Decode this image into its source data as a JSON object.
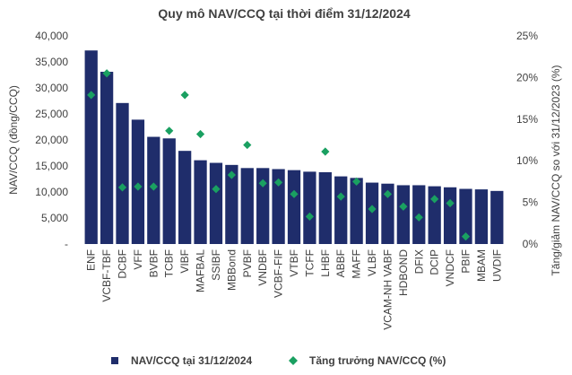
{
  "chart_data": {
    "type": "bar",
    "title": "Quy mô NAV/CCQ tại thời điểm 31/12/2024",
    "ylabel": "NAV/CCQ (đồng/CCQ)",
    "y2label": "Tăng/giảm NAV/CCQ so với 31/12/2023 (%)",
    "ylim": [
      0,
      40000
    ],
    "y2lim": [
      0,
      25
    ],
    "yticks": [
      "-",
      "5,000",
      "10,000",
      "15,000",
      "20,000",
      "25,000",
      "30,000",
      "35,000",
      "40,000"
    ],
    "y2ticks": [
      "0%",
      "5%",
      "10%",
      "15%",
      "20%",
      "25%"
    ],
    "categories": [
      "ENF",
      "VCBF-TBF",
      "DCBF",
      "VFF",
      "BVBF",
      "TCBF",
      "VIBF",
      "MAFBAL",
      "SSIBF",
      "MBBond",
      "PVBF",
      "VNDBF",
      "VCBF-FIF",
      "VTBF",
      "TCFF",
      "LHBF",
      "ABBF",
      "MAFF",
      "VLBF",
      "VCAM-NH VABF",
      "HDBOND",
      "DFIX",
      "DCIP",
      "VNDCF",
      "PBIF",
      "MBAM",
      "UVDIF"
    ],
    "series": [
      {
        "name": "NAV/CCQ tại 31/12/2024",
        "type": "bar",
        "color": "#1f2d6b",
        "axis": "left",
        "values": [
          37200,
          33100,
          27100,
          23900,
          20600,
          20300,
          17900,
          16100,
          15600,
          15200,
          14600,
          14600,
          14400,
          14200,
          13900,
          13800,
          13000,
          12700,
          11800,
          11600,
          11300,
          11300,
          11100,
          10900,
          10600,
          10500,
          10200
        ]
      },
      {
        "name": "Tăng trưởng NAV/CCQ (%)",
        "type": "scatter",
        "color": "#1aa061",
        "axis": "right",
        "values": [
          17.9,
          20.5,
          6.8,
          6.9,
          6.9,
          13.6,
          17.9,
          13.2,
          6.6,
          8.3,
          11.9,
          7.3,
          7.4,
          6.0,
          3.3,
          11.1,
          5.7,
          7.5,
          4.2,
          6.0,
          4.5,
          3.2,
          5.4,
          4.9,
          0.9,
          null,
          null
        ]
      }
    ],
    "legend_position": "bottom",
    "grid": false
  }
}
